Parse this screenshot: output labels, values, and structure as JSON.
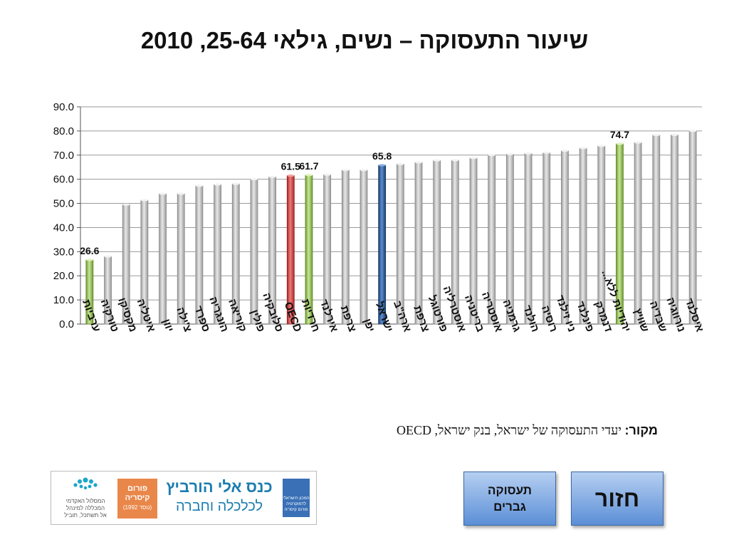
{
  "title": "שיעור התעסוקה – נשים, גילאי 25-64, 2010",
  "source": {
    "label": "מקור:",
    "text": " יעדי התעסוקה של ישראל, בנק ישראל, OECD"
  },
  "logos": {
    "academic": "המסלול האקדמי\nהמכללה למינהל\nאל תשתכל, תוביל",
    "forum": "פורום\nקיסריה",
    "forum_small": "(נוסד 1992)",
    "conference_line1": "כנס אלי הורביץ",
    "conference_line2": "לכלכלה וחברה",
    "institute": "המכון הישראלי לדמוקרטיה\nפורום קיסריה"
  },
  "buttons": {
    "employment_men": "תעסוקה גברים",
    "back": "חזור"
  },
  "colors": {
    "gray": "#c4c4c4",
    "green": "#9bc55c",
    "red": "#d24c4c",
    "blue": "#2a5a96"
  },
  "chart_data": {
    "type": "bar",
    "title": "שיעור התעסוקה – נשים, גילאי 25-64, 2010",
    "ylim": [
      0,
      90
    ],
    "yticks": [
      "0.0",
      "10.0",
      "20.0",
      "30.0",
      "40.0",
      "50.0",
      "60.0",
      "70.0",
      "80.0",
      "90.0"
    ],
    "grid": true,
    "categories": [
      "ערביות",
      "טורקיה",
      "מקסיקו",
      "איטליה",
      "יוון",
      "צ'ילה",
      "ספרד",
      "הונגריה",
      "קוריאה",
      "פולין",
      "סלובקיה",
      "OECD",
      "חרדיות",
      "אירלנד",
      "צרפת",
      "יפן",
      "ישראל",
      "ארה\"ב",
      "צרפת",
      "פורטוגל",
      "אוסטרליה",
      "בריטניה",
      "אוסטריה",
      "גרמניה",
      "הולנד",
      "רוסיה",
      "ניו זילנד",
      "פינלנד",
      "דנמרק",
      "יהודיות ללא...",
      "שוויץ",
      "שבדיה",
      "נורווגיה",
      "איסלנד"
    ],
    "values": [
      26.6,
      28.0,
      49.5,
      51.3,
      54.0,
      54.0,
      57.3,
      57.8,
      58.1,
      60.0,
      61.0,
      61.5,
      61.7,
      61.9,
      63.8,
      63.8,
      65.8,
      66.3,
      67.0,
      67.8,
      67.9,
      68.8,
      70.0,
      70.4,
      70.7,
      71.0,
      71.8,
      72.9,
      73.8,
      74.7,
      75.2,
      78.3,
      78.4,
      80.0
    ],
    "highlight": {
      "0": "green",
      "11": "red",
      "12": "green",
      "16": "blue",
      "29": "green"
    },
    "data_labels": {
      "0": "26.6",
      "11": "61.5",
      "12": "61.7",
      "16": "65.8",
      "29": "74.7"
    }
  }
}
